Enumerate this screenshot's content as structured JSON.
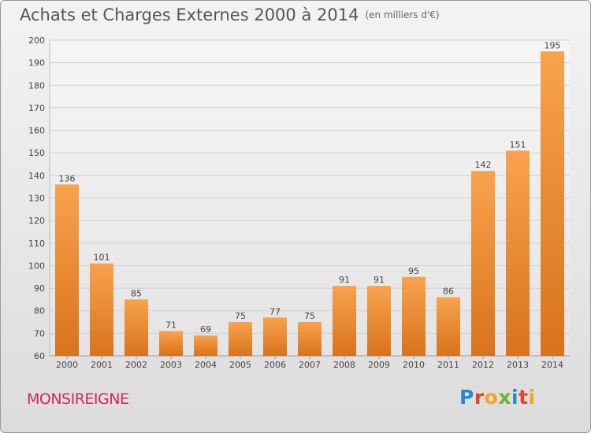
{
  "header": {
    "title": "Achats et Charges Externes 2000 à 2014",
    "unit": "(en milliers d'€)"
  },
  "footer": {
    "place": "MONSIREIGNE",
    "brand": "Proxiti",
    "brand_letters": [
      {
        "ch": "P",
        "color": "#2f86c8"
      },
      {
        "ch": "r",
        "color": "#e8412c"
      },
      {
        "ch": "o",
        "color": "#f4a51c"
      },
      {
        "ch": "x",
        "color": "#6ab52d"
      },
      {
        "ch": "i",
        "color": "#2f86c8"
      },
      {
        "ch": "t",
        "color": "#e8412c"
      },
      {
        "ch": "i",
        "color": "#f4a51c"
      }
    ]
  },
  "colors": {
    "bar_light": "#f9a24d",
    "bar_dark": "#d8731c",
    "grid": "#d0d0d0",
    "axis_text": "#444444",
    "place": "#d02664"
  },
  "chart_data": {
    "type": "bar",
    "title": "Achats et Charges Externes 2000 à 2014",
    "subtitle": "(en milliers d'€)",
    "categories": [
      "2000",
      "2001",
      "2002",
      "2003",
      "2004",
      "2005",
      "2006",
      "2007",
      "2008",
      "2009",
      "2010",
      "2011",
      "2012",
      "2013",
      "2014"
    ],
    "values": [
      136,
      101,
      85,
      71,
      69,
      75,
      77,
      75,
      91,
      91,
      95,
      86,
      142,
      151,
      195
    ],
    "ylim": [
      60,
      200
    ],
    "yticks": [
      60,
      70,
      80,
      90,
      100,
      110,
      120,
      130,
      140,
      150,
      160,
      170,
      180,
      190,
      200
    ],
    "grid": true,
    "xlabel": "",
    "ylabel": ""
  }
}
